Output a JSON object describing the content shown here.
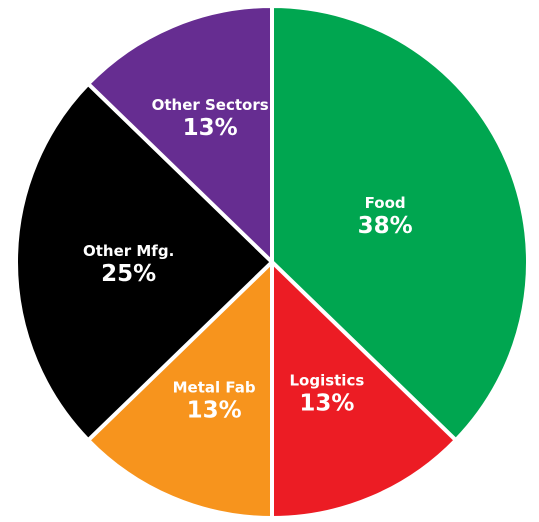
{
  "chart_data": {
    "type": "pie",
    "title": "",
    "slices": [
      {
        "label": "Food",
        "value": 38,
        "value_label": "38%",
        "color": "#00A650"
      },
      {
        "label": "Logistics",
        "value": 13,
        "value_label": "13%",
        "color": "#EC1C24"
      },
      {
        "label": "Metal Fab",
        "value": 13,
        "value_label": "13%",
        "color": "#F7941D"
      },
      {
        "label": "Other Mfg.",
        "value": 25,
        "value_label": "25%",
        "color": "#000000"
      },
      {
        "label": "Other Sectors",
        "value": 13,
        "value_label": "13%",
        "color": "#662D91"
      }
    ],
    "start": "12 o'clock",
    "direction": "clockwise",
    "legend": "none"
  }
}
